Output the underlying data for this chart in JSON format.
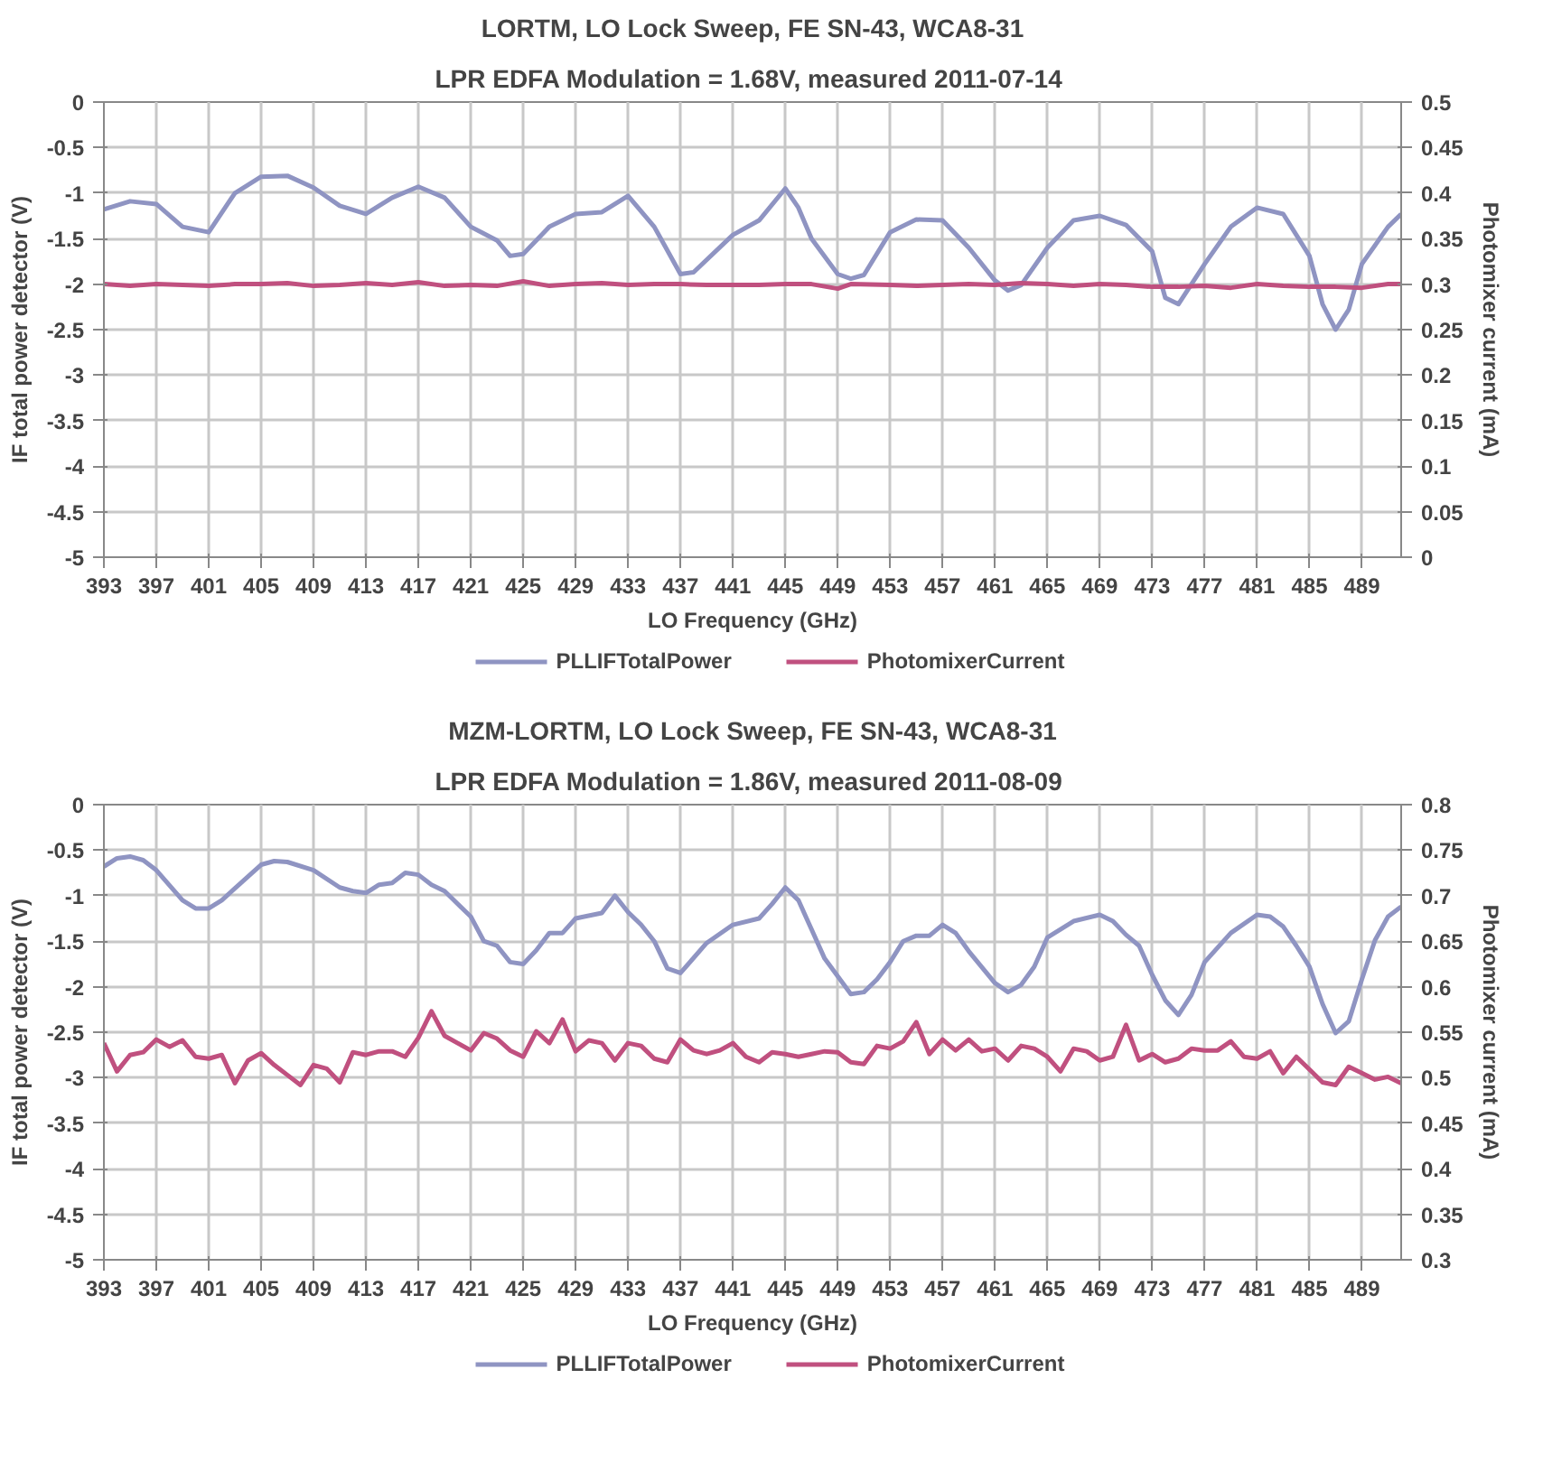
{
  "chart_data": [
    {
      "type": "line",
      "title": "LORTM, LO Lock Sweep, FE SN-43, WCA8-31",
      "subtitle": "LPR EDFA Modulation = 1.68V, measured  2011-07-14",
      "xlabel": "LO Frequency (GHz)",
      "ylabel": "IF total power detector (V)",
      "y2label": "Photomixer current (mA)",
      "xlim": [
        393,
        492
      ],
      "xticks": [
        393,
        397,
        401,
        405,
        409,
        413,
        417,
        421,
        425,
        429,
        433,
        437,
        441,
        445,
        449,
        453,
        457,
        461,
        465,
        469,
        473,
        477,
        481,
        485,
        489
      ],
      "ylim": [
        -5,
        0
      ],
      "yticks": [
        0,
        -0.5,
        -1,
        -1.5,
        -2,
        -2.5,
        -3,
        -3.5,
        -4,
        -4.5,
        -5
      ],
      "y2lim": [
        0,
        0.5
      ],
      "y2ticks": [
        0,
        0.05,
        0.1,
        0.15,
        0.2,
        0.25,
        0.3,
        0.35,
        0.4,
        0.45,
        0.5
      ],
      "grid": true,
      "legend": "bottom",
      "line_style": "solid",
      "marker": "none",
      "series": [
        {
          "name": "PLLIFTotalPower",
          "color": "#8f94c2",
          "x": [
            393,
            395,
            397,
            399,
            401,
            403,
            405,
            407,
            409,
            411,
            413,
            415,
            417,
            419,
            421,
            423,
            424,
            425,
            427,
            429,
            431,
            433,
            435,
            437,
            438,
            441,
            443,
            445,
            446,
            447,
            449,
            450,
            451,
            453,
            455,
            457,
            459,
            461,
            462,
            463,
            465,
            467,
            469,
            471,
            473,
            474,
            475,
            477,
            479,
            481,
            483,
            485,
            486,
            487,
            488,
            489,
            491,
            492
          ],
          "values": [
            -1.18,
            -1.09,
            -1.12,
            -1.37,
            -1.43,
            -1.0,
            -0.82,
            -0.81,
            -0.94,
            -1.14,
            -1.23,
            -1.05,
            -0.93,
            -1.05,
            -1.37,
            -1.52,
            -1.69,
            -1.67,
            -1.37,
            -1.23,
            -1.21,
            -1.03,
            -1.37,
            -1.89,
            -1.87,
            -1.46,
            -1.3,
            -0.95,
            -1.16,
            -1.5,
            -1.89,
            -1.94,
            -1.9,
            -1.43,
            -1.29,
            -1.3,
            -1.6,
            -1.96,
            -2.07,
            -2.01,
            -1.6,
            -1.3,
            -1.25,
            -1.35,
            -1.64,
            -2.15,
            -2.22,
            -1.78,
            -1.37,
            -1.16,
            -1.23,
            -1.69,
            -2.22,
            -2.5,
            -2.28,
            -1.78,
            -1.37,
            -1.23
          ]
        },
        {
          "name": "PhotomixerCurrent",
          "color": "#c0507f",
          "axis": "y2",
          "x": [
            393,
            395,
            397,
            399,
            401,
            403,
            405,
            407,
            409,
            411,
            413,
            415,
            417,
            419,
            421,
            423,
            425,
            427,
            429,
            431,
            433,
            435,
            437,
            439,
            441,
            443,
            445,
            447,
            449,
            450,
            453,
            455,
            457,
            459,
            461,
            463,
            465,
            467,
            469,
            471,
            473,
            475,
            477,
            479,
            481,
            483,
            485,
            487,
            489,
            491,
            492
          ],
          "values": [
            0.3,
            0.298,
            0.3,
            0.299,
            0.298,
            0.3,
            0.3,
            0.301,
            0.298,
            0.299,
            0.301,
            0.299,
            0.302,
            0.298,
            0.299,
            0.298,
            0.303,
            0.298,
            0.3,
            0.301,
            0.299,
            0.3,
            0.3,
            0.299,
            0.299,
            0.299,
            0.3,
            0.3,
            0.295,
            0.3,
            0.299,
            0.298,
            0.299,
            0.3,
            0.299,
            0.301,
            0.3,
            0.298,
            0.3,
            0.299,
            0.297,
            0.297,
            0.298,
            0.296,
            0.3,
            0.298,
            0.297,
            0.297,
            0.296,
            0.3,
            0.3
          ]
        }
      ]
    },
    {
      "type": "line",
      "title": "MZM-LORTM, LO Lock Sweep, FE SN-43, WCA8-31",
      "subtitle": "LPR EDFA Modulation = 1.86V, measured  2011-08-09",
      "xlabel": "LO Frequency (GHz)",
      "ylabel": "IF total power detector (V)",
      "y2label": "Photomixer current (mA)",
      "xlim": [
        393,
        492
      ],
      "xticks": [
        393,
        397,
        401,
        405,
        409,
        413,
        417,
        421,
        425,
        429,
        433,
        437,
        441,
        445,
        449,
        453,
        457,
        461,
        465,
        469,
        473,
        477,
        481,
        485,
        489
      ],
      "ylim": [
        -5,
        0
      ],
      "yticks": [
        0,
        -0.5,
        -1,
        -1.5,
        -2,
        -2.5,
        -3,
        -3.5,
        -4,
        -4.5,
        -5
      ],
      "y2lim": [
        0.3,
        0.8
      ],
      "y2ticks": [
        0.3,
        0.35,
        0.4,
        0.45,
        0.5,
        0.55,
        0.6,
        0.65,
        0.7,
        0.75,
        0.8
      ],
      "grid": true,
      "legend": "bottom",
      "line_style": "solid",
      "marker": "none",
      "series": [
        {
          "name": "PLLIFTotalPower",
          "color": "#8f94c2",
          "x": [
            393,
            394,
            395,
            396,
            397,
            399,
            400,
            401,
            402,
            404,
            405,
            406,
            407,
            409,
            411,
            412,
            413,
            414,
            415,
            416,
            417,
            418,
            419,
            421,
            422,
            423,
            424,
            425,
            426,
            427,
            428,
            429,
            431,
            432,
            433,
            434,
            435,
            436,
            437,
            439,
            441,
            443,
            444,
            445,
            446,
            447,
            448,
            450,
            451,
            452,
            453,
            454,
            455,
            456,
            457,
            458,
            459,
            461,
            462,
            463,
            464,
            465,
            467,
            469,
            470,
            471,
            472,
            473,
            474,
            475,
            476,
            477,
            479,
            481,
            482,
            483,
            484,
            485,
            486,
            487,
            488,
            489,
            490,
            491,
            492
          ],
          "values": [
            -0.68,
            -0.59,
            -0.57,
            -0.61,
            -0.72,
            -1.05,
            -1.14,
            -1.14,
            -1.05,
            -0.79,
            -0.66,
            -0.62,
            -0.63,
            -0.72,
            -0.91,
            -0.95,
            -0.97,
            -0.88,
            -0.86,
            -0.75,
            -0.77,
            -0.88,
            -0.95,
            -1.23,
            -1.5,
            -1.55,
            -1.73,
            -1.75,
            -1.6,
            -1.41,
            -1.41,
            -1.25,
            -1.19,
            -1.0,
            -1.18,
            -1.32,
            -1.5,
            -1.8,
            -1.85,
            -1.52,
            -1.32,
            -1.25,
            -1.09,
            -0.91,
            -1.05,
            -1.37,
            -1.69,
            -2.08,
            -2.06,
            -1.92,
            -1.73,
            -1.5,
            -1.44,
            -1.44,
            -1.32,
            -1.41,
            -1.61,
            -1.96,
            -2.06,
            -1.98,
            -1.78,
            -1.46,
            -1.28,
            -1.21,
            -1.28,
            -1.43,
            -1.55,
            -1.87,
            -2.15,
            -2.31,
            -2.09,
            -1.73,
            -1.41,
            -1.21,
            -1.23,
            -1.34,
            -1.55,
            -1.78,
            -2.19,
            -2.51,
            -2.38,
            -1.92,
            -1.49,
            -1.23,
            -1.12
          ]
        },
        {
          "name": "PhotomixerCurrent",
          "color": "#c0507f",
          "axis": "y2",
          "x": [
            393,
            394,
            395,
            396,
            397,
            398,
            399,
            400,
            401,
            402,
            403,
            404,
            405,
            406,
            407,
            408,
            409,
            410,
            411,
            412,
            413,
            414,
            415,
            416,
            417,
            418,
            419,
            420,
            421,
            422,
            423,
            424,
            425,
            426,
            427,
            428,
            429,
            430,
            431,
            432,
            433,
            434,
            435,
            436,
            437,
            438,
            439,
            440,
            441,
            442,
            443,
            444,
            445,
            446,
            447,
            448,
            449,
            450,
            451,
            452,
            453,
            454,
            455,
            456,
            457,
            458,
            459,
            460,
            461,
            462,
            463,
            464,
            465,
            466,
            467,
            468,
            469,
            470,
            471,
            472,
            473,
            474,
            475,
            476,
            477,
            478,
            479,
            480,
            481,
            482,
            483,
            484,
            485,
            486,
            487,
            488,
            489,
            490,
            491,
            492
          ],
          "values": [
            0.538,
            0.507,
            0.525,
            0.528,
            0.542,
            0.534,
            0.541,
            0.523,
            0.521,
            0.525,
            0.494,
            0.519,
            0.527,
            0.514,
            0.503,
            0.492,
            0.514,
            0.51,
            0.495,
            0.528,
            0.525,
            0.529,
            0.529,
            0.523,
            0.544,
            0.573,
            0.546,
            0.538,
            0.53,
            0.549,
            0.543,
            0.53,
            0.523,
            0.551,
            0.538,
            0.564,
            0.529,
            0.541,
            0.538,
            0.519,
            0.538,
            0.535,
            0.521,
            0.517,
            0.542,
            0.53,
            0.526,
            0.53,
            0.538,
            0.523,
            0.517,
            0.528,
            0.526,
            0.523,
            0.526,
            0.529,
            0.528,
            0.517,
            0.515,
            0.535,
            0.532,
            0.54,
            0.561,
            0.526,
            0.542,
            0.53,
            0.542,
            0.529,
            0.532,
            0.519,
            0.535,
            0.532,
            0.523,
            0.507,
            0.532,
            0.529,
            0.519,
            0.523,
            0.558,
            0.519,
            0.526,
            0.517,
            0.521,
            0.532,
            0.53,
            0.53,
            0.54,
            0.523,
            0.521,
            0.529,
            0.505,
            0.523,
            0.509,
            0.495,
            0.492,
            0.512,
            0.505,
            0.498,
            0.501,
            0.494
          ]
        }
      ]
    }
  ]
}
